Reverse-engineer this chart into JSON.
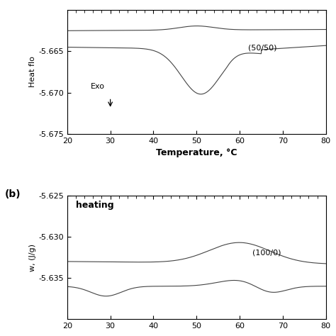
{
  "panel_a": {
    "xlabel": "Temperature, °C",
    "ylabel": "Heat flo",
    "xlim": [
      20,
      80
    ],
    "ylim": [
      -5.675,
      -5.66
    ],
    "yticks": [
      -5.675,
      -5.67,
      -5.665
    ],
    "xticks": [
      20,
      30,
      40,
      50,
      60,
      70,
      80
    ],
    "label_50_50": "(50/50)",
    "exo_text": "Exo",
    "line_color": "#444444",
    "background": "#ffffff"
  },
  "panel_b": {
    "ylabel": "w, (J/g)",
    "xlim": [
      20,
      80
    ],
    "ylim": [
      -5.64,
      -5.625
    ],
    "yticks": [
      -5.635,
      -5.63,
      -5.625
    ],
    "xticks": [
      20,
      30,
      40,
      50,
      60,
      70,
      80
    ],
    "label_100_0": "(100/0)",
    "heating_text": "heating",
    "line_color": "#444444",
    "background": "#ffffff"
  }
}
